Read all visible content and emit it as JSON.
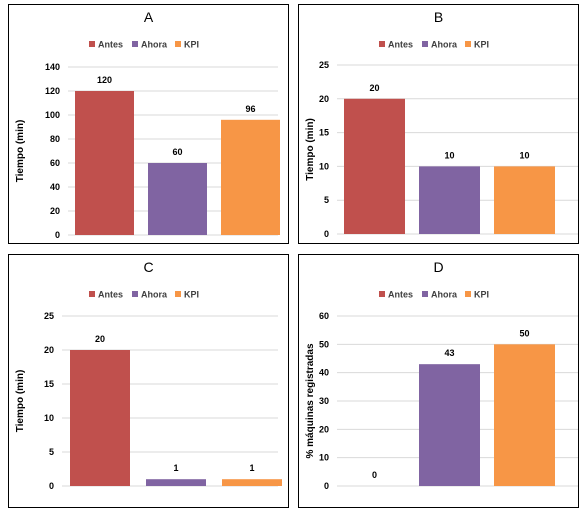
{
  "colors": {
    "antes": "#c0504d",
    "ahora": "#8064a2",
    "kpi": "#f79646",
    "grid": "#d9d9d9"
  },
  "chart_data": [
    {
      "type": "bar",
      "title": "A",
      "categories": [
        "Antes",
        "Ahora",
        "KPI"
      ],
      "values": [
        120,
        60,
        96
      ],
      "data_labels": [
        "120",
        "60",
        "96"
      ],
      "legend": [
        "Antes",
        "Ahora",
        "KPI"
      ],
      "legend_position": "top",
      "ylabel": "Tiempo (min)",
      "ylim": [
        0,
        140
      ],
      "yticks": [
        "0",
        "20",
        "40",
        "60",
        "80",
        "100",
        "120",
        "140"
      ],
      "grid": true
    },
    {
      "type": "bar",
      "title": "B",
      "categories": [
        "Antes",
        "Ahora",
        "KPI"
      ],
      "values": [
        20,
        10,
        10
      ],
      "data_labels": [
        "20",
        "10",
        "10"
      ],
      "legend": [
        "Antes",
        "Ahora",
        "KPI"
      ],
      "legend_position": "top",
      "ylabel": "Tiempo (min)",
      "ylim": [
        0,
        25
      ],
      "yticks": [
        "0",
        "5",
        "10",
        "15",
        "20",
        "25"
      ],
      "grid": true
    },
    {
      "type": "bar",
      "title": "C",
      "categories": [
        "Antes",
        "Ahora",
        "KPI"
      ],
      "values": [
        20,
        1,
        1
      ],
      "data_labels": [
        "20",
        "1",
        "1"
      ],
      "legend": [
        "Antes",
        "Ahora",
        "KPI"
      ],
      "legend_position": "top",
      "ylabel": "Tiempo (min)",
      "ylim": [
        0,
        25
      ],
      "yticks": [
        "0",
        "5",
        "10",
        "15",
        "20",
        "25"
      ],
      "grid": true
    },
    {
      "type": "bar",
      "title": "D",
      "categories": [
        "Antes",
        "Ahora",
        "KPI"
      ],
      "values": [
        0,
        43,
        50
      ],
      "data_labels": [
        "0",
        "43",
        "50"
      ],
      "legend": [
        "Antes",
        "Ahora",
        "KPI"
      ],
      "legend_position": "top",
      "ylabel": "% máquinas registradas",
      "ylim": [
        0,
        60
      ],
      "yticks": [
        "0",
        "10",
        "20",
        "30",
        "40",
        "50",
        "60"
      ],
      "grid": true
    }
  ]
}
